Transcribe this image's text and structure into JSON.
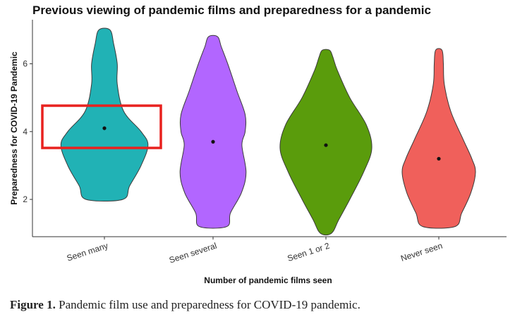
{
  "chart_data": {
    "type": "violin",
    "title": "Previous viewing of pandemic films and preparedness for a pandemic",
    "xlabel": "Number of pandemic films seen",
    "ylabel": "Preparedness for COVID-19 Pandemic",
    "categories": [
      "Seen many",
      "Seen several",
      "Seen 1 or 2",
      "Never seen"
    ],
    "yticks": [
      2,
      4,
      6
    ],
    "ylim": [
      0.9,
      7.3
    ],
    "grid": false,
    "legend": "none",
    "series": [
      {
        "color": "#21B2B5",
        "min": 2.0,
        "max": 7.0,
        "mean": 4.1,
        "width_profile": [
          [
            2.0,
            0.4
          ],
          [
            2.4,
            0.55
          ],
          [
            3.0,
            0.8
          ],
          [
            3.6,
            0.95
          ],
          [
            4.0,
            0.8
          ],
          [
            4.6,
            0.42
          ],
          [
            5.4,
            0.28
          ],
          [
            6.0,
            0.28
          ],
          [
            6.6,
            0.2
          ],
          [
            7.0,
            0.12
          ]
        ]
      },
      {
        "color": "#B266FF",
        "min": 1.2,
        "max": 6.8,
        "mean": 3.7,
        "width_profile": [
          [
            1.2,
            0.3
          ],
          [
            1.6,
            0.38
          ],
          [
            2.2,
            0.62
          ],
          [
            2.8,
            0.72
          ],
          [
            3.6,
            0.63
          ],
          [
            4.0,
            0.7
          ],
          [
            4.5,
            0.7
          ],
          [
            5.2,
            0.52
          ],
          [
            6.0,
            0.32
          ],
          [
            6.5,
            0.18
          ],
          [
            6.8,
            0.1
          ]
        ]
      },
      {
        "color": "#5A9C0C",
        "min": 1.0,
        "max": 6.4,
        "mean": 3.6,
        "width_profile": [
          [
            1.0,
            0.12
          ],
          [
            1.4,
            0.28
          ],
          [
            2.0,
            0.52
          ],
          [
            2.8,
            0.82
          ],
          [
            3.5,
            1.0
          ],
          [
            4.2,
            0.88
          ],
          [
            5.0,
            0.52
          ],
          [
            5.8,
            0.25
          ],
          [
            6.2,
            0.15
          ],
          [
            6.4,
            0.08
          ]
        ]
      },
      {
        "color": "#F0605B",
        "min": 1.2,
        "max": 6.4,
        "mean": 3.2,
        "width_profile": [
          [
            1.2,
            0.35
          ],
          [
            1.6,
            0.5
          ],
          [
            2.2,
            0.7
          ],
          [
            2.8,
            0.8
          ],
          [
            3.2,
            0.72
          ],
          [
            3.8,
            0.52
          ],
          [
            4.6,
            0.26
          ],
          [
            5.4,
            0.12
          ],
          [
            6.0,
            0.1
          ],
          [
            6.4,
            0.07
          ]
        ]
      }
    ]
  },
  "highlight": {
    "color": "#E8211E",
    "label": ""
  },
  "caption": {
    "label": "Figure 1.",
    "text": " Pandemic film use and preparedness for COVID-19 pandemic."
  }
}
